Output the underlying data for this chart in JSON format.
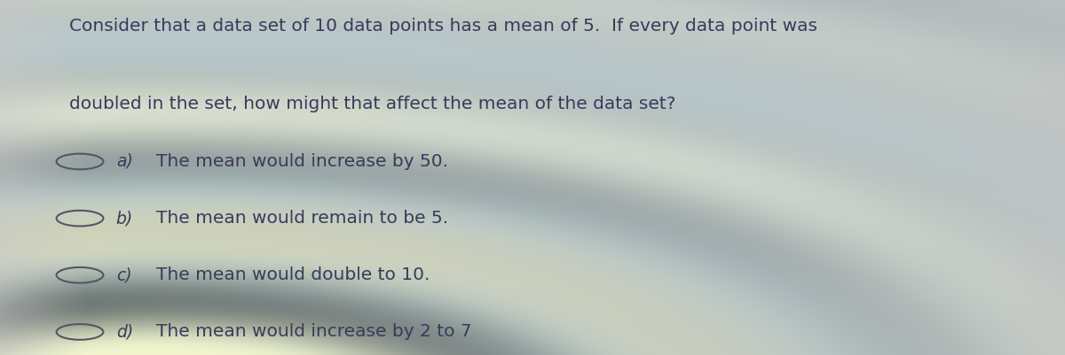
{
  "question_line1": "Consider that a data set of 10 data points has a mean of 5.  If every data point was",
  "question_line2": "doubled in the set, how might that affect the mean of the data set?",
  "options": [
    {
      "label": "a)",
      "text": "The mean would increase by 50."
    },
    {
      "label": "b)",
      "text": "The mean would remain to be 5."
    },
    {
      "label": "c)",
      "text": "The mean would double to 10."
    },
    {
      "label": "d)",
      "text": "The mean would increase by 2 to 7"
    }
  ],
  "text_color": "#3a3a5a",
  "circle_edge_color": "#555566",
  "font_size_question": 14.5,
  "font_size_options": 14.5,
  "figsize": [
    12.0,
    4.01
  ],
  "dpi": 100
}
